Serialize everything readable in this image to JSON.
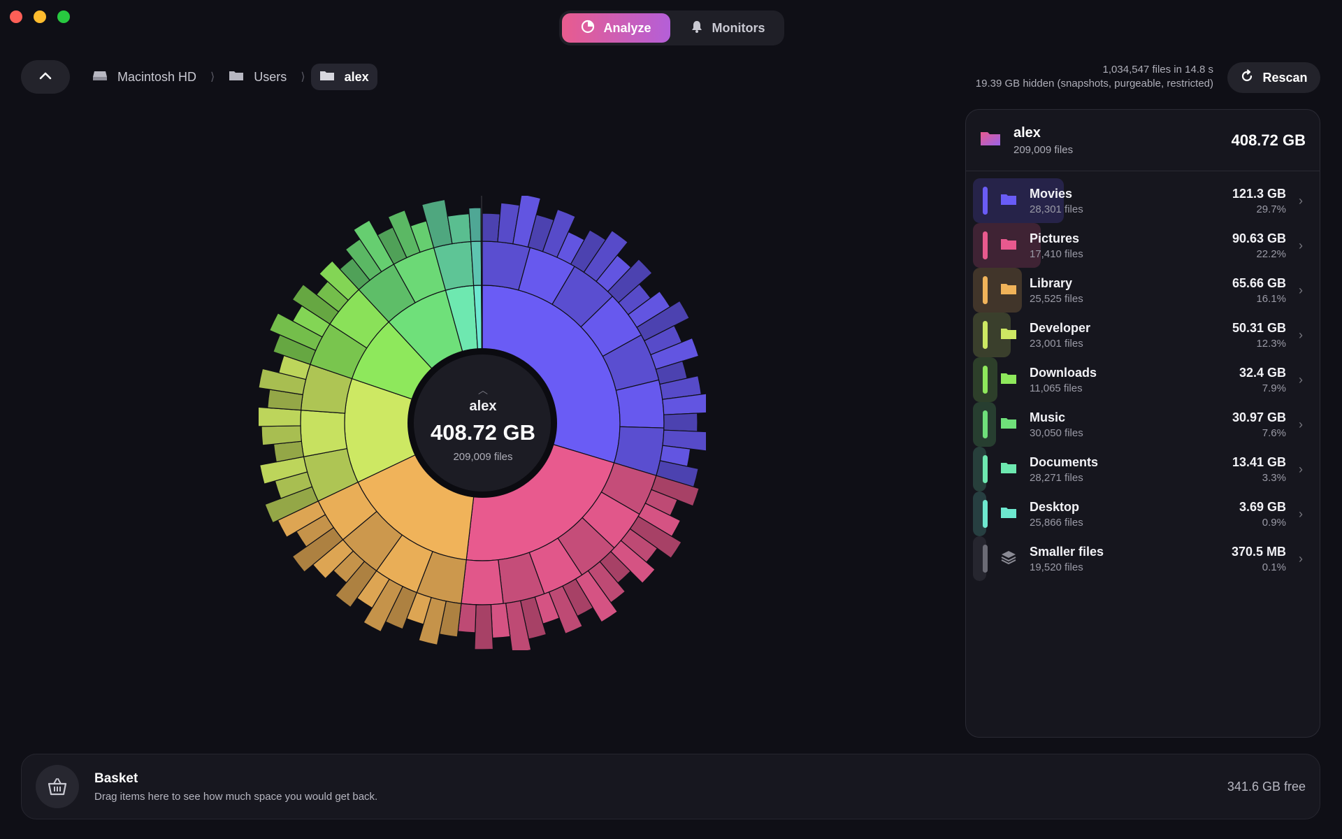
{
  "window": {
    "traffic_lights": [
      "close",
      "minimize",
      "maximize"
    ]
  },
  "mode_tabs": [
    {
      "label": "Analyze",
      "icon": "pie-chart-icon",
      "active": true
    },
    {
      "label": "Monitors",
      "icon": "bell-icon",
      "active": false
    }
  ],
  "breadcrumb": [
    {
      "label": "Macintosh HD",
      "icon": "drive-icon"
    },
    {
      "label": "Users",
      "icon": "folder-icon"
    },
    {
      "label": "alex",
      "icon": "folder-icon",
      "current": true
    }
  ],
  "scan": {
    "files_line": "1,034,547 files in 14.8 s",
    "hidden_line": "19.39 GB hidden (snapshots, purgeable, restricted)",
    "rescan_label": "Rescan"
  },
  "center": {
    "name": "alex",
    "size": "408.72 GB",
    "files": "209,009 files"
  },
  "panel": {
    "header": {
      "name": "alex",
      "files": "209,009 files",
      "size": "408.72 GB"
    },
    "items": [
      {
        "name": "Movies",
        "files": "28,301 files",
        "size": "121.3 GB",
        "pct": "29.7%",
        "share": 0.297,
        "color": "#6a5cf5"
      },
      {
        "name": "Pictures",
        "files": "17,410 files",
        "size": "90.63 GB",
        "pct": "22.2%",
        "share": 0.222,
        "color": "#e85a8e"
      },
      {
        "name": "Library",
        "files": "25,525 files",
        "size": "65.66 GB",
        "pct": "16.1%",
        "share": 0.161,
        "color": "#f0b35a"
      },
      {
        "name": "Developer",
        "files": "23,001 files",
        "size": "50.31 GB",
        "pct": "12.3%",
        "share": 0.123,
        "color": "#cde863"
      },
      {
        "name": "Downloads",
        "files": "11,065 files",
        "size": "32.4 GB",
        "pct": "7.9%",
        "share": 0.079,
        "color": "#8ee85c"
      },
      {
        "name": "Music",
        "files": "30,050 files",
        "size": "30.97 GB",
        "pct": "7.6%",
        "share": 0.076,
        "color": "#6fe07a"
      },
      {
        "name": "Documents",
        "files": "28,271 files",
        "size": "13.41 GB",
        "pct": "3.3%",
        "share": 0.033,
        "color": "#6ee8b0"
      },
      {
        "name": "Desktop",
        "files": "25,866 files",
        "size": "3.69 GB",
        "pct": "0.9%",
        "share": 0.009,
        "color": "#6ee8cf"
      },
      {
        "name": "Smaller files",
        "files": "19,520 files",
        "size": "370.5 MB",
        "pct": "0.1%",
        "share": 0.001,
        "color": "#6b6b75"
      }
    ]
  },
  "basket": {
    "title": "Basket",
    "description": "Drag items here to see how much space you would get back.",
    "free": "341.6 GB free"
  }
}
